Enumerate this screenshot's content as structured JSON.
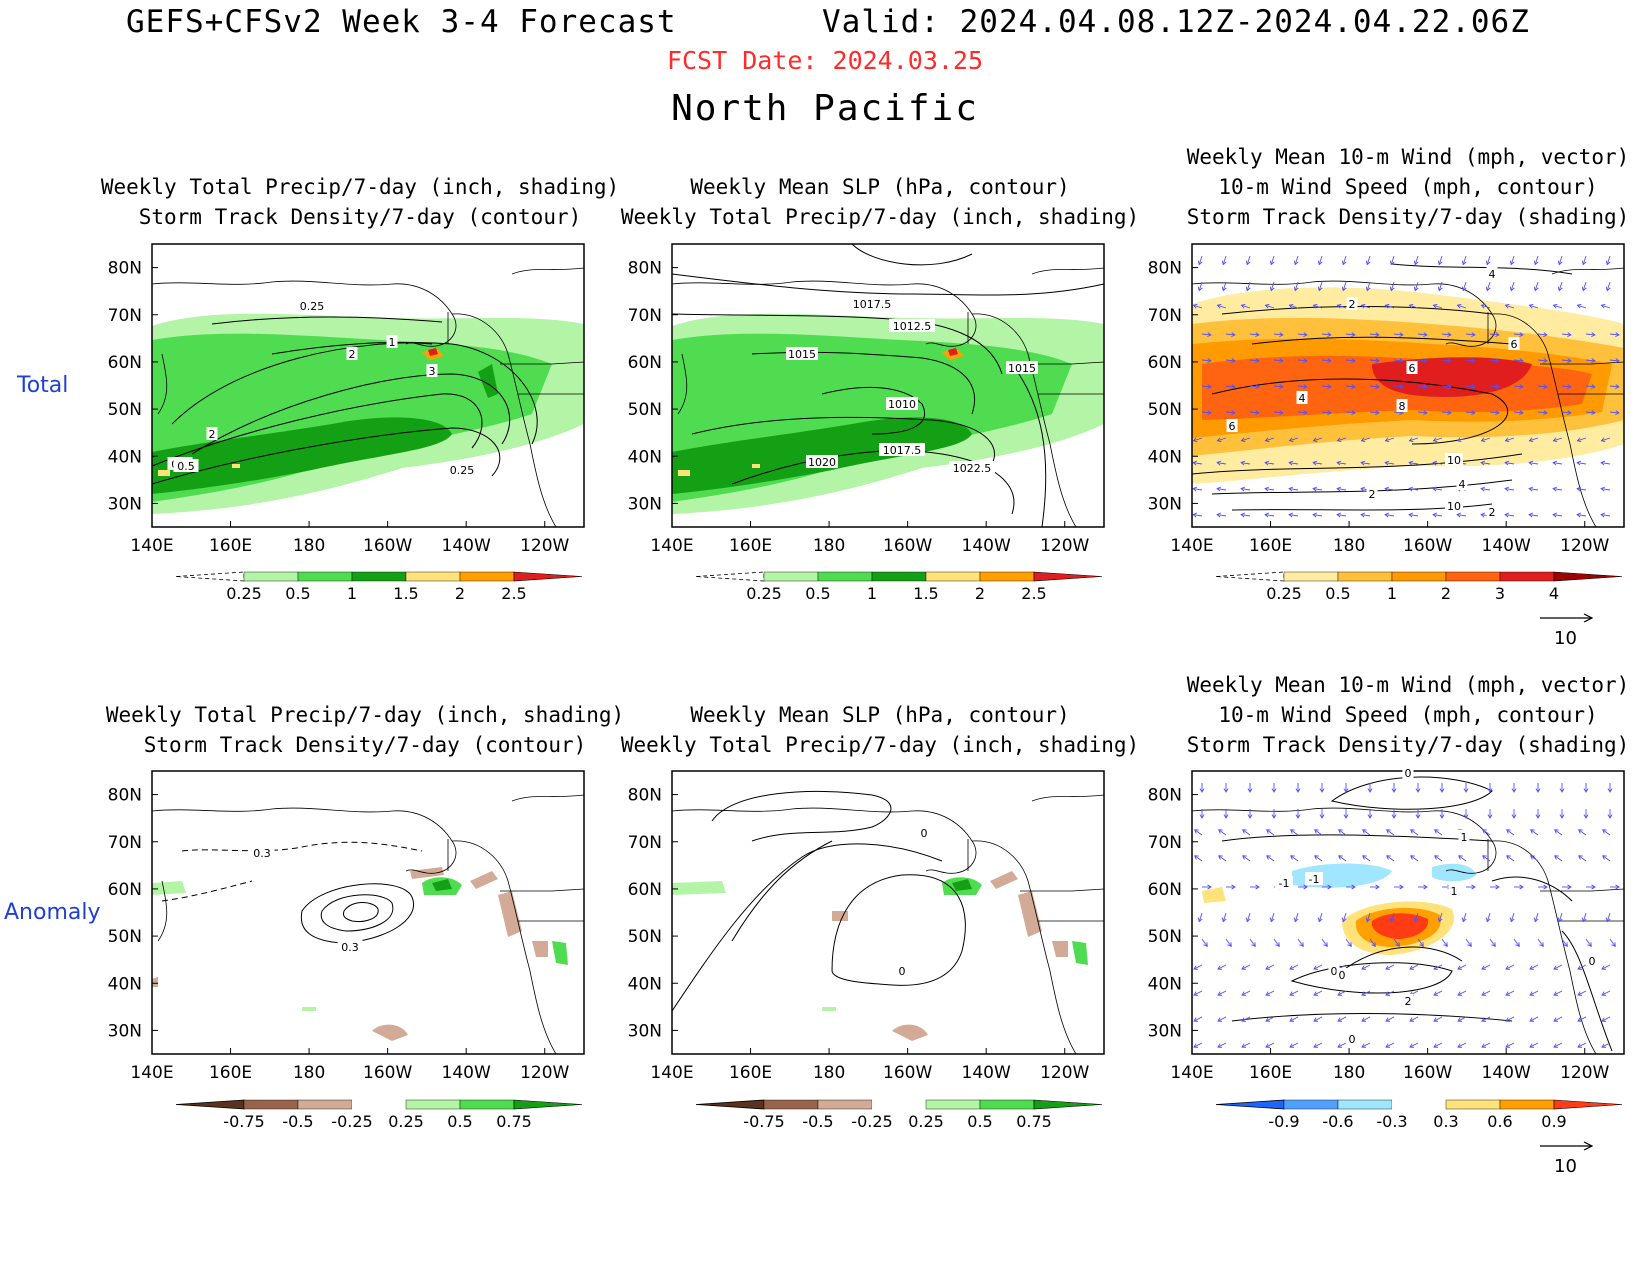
{
  "header": {
    "title": "GEFS+CFSv2 Week 3-4 Forecast",
    "valid": "Valid: 2024.04.08.12Z-2024.04.22.06Z",
    "fcst_date": "FCST Date: 2024.03.25",
    "region": "North Pacific"
  },
  "rows": {
    "total": "Total",
    "anomaly": "Anomaly"
  },
  "axes": {
    "lat_ticks": [
      "80N",
      "70N",
      "60N",
      "50N",
      "40N",
      "30N"
    ],
    "lon_ticks": [
      "140E",
      "160E",
      "180",
      "160W",
      "140W",
      "120W"
    ],
    "lat_range": [
      25,
      85
    ],
    "lon_range": [
      140,
      250
    ]
  },
  "panels": {
    "p1": {
      "titles": [
        "Weekly Total Precip/7-day (inch, shading)",
        "Storm Track Density/7-day (contour)"
      ]
    },
    "p2": {
      "titles": [
        "Weekly Mean SLP (hPa, contour)",
        "Weekly Total Precip/7-day (inch, shading)"
      ]
    },
    "p3": {
      "titles": [
        "Weekly Mean 10-m Wind (mph, vector)",
        "10-m Wind Speed (mph, contour)",
        "Storm Track Density/7-day (shading)"
      ]
    },
    "p4": {
      "titles": [
        "Weekly Total Precip/7-day (inch, shading)",
        "Storm Track Density/7-day (contour)"
      ]
    },
    "p5": {
      "titles": [
        "Weekly Mean SLP (hPa, contour)",
        "Weekly Total Precip/7-day (inch, shading)"
      ]
    },
    "p6": {
      "titles": [
        "Weekly Mean 10-m Wind (mph, vector)",
        "10-m Wind Speed (mph, contour)",
        "Storm Track Density/7-day (shading)"
      ]
    }
  },
  "contour_labels": {
    "p1": [
      "0.25",
      "0.5",
      "1",
      "2",
      "3",
      "2",
      "0.5",
      "0.25"
    ],
    "p2": [
      "1017.5",
      "1015",
      "1012.5",
      "1015",
      "1010",
      "1017.5",
      "1020",
      "1022.5"
    ],
    "p3": [
      "4",
      "2",
      "6",
      "6",
      "4",
      "8",
      "6",
      "10",
      "4",
      "2",
      "10",
      "2"
    ],
    "p4": [
      "0.3",
      "0.3"
    ],
    "p5": [
      "0",
      "0"
    ],
    "p6": [
      "0",
      "1",
      "-1",
      "-1",
      "0",
      "1",
      "2",
      "0",
      "0",
      "0"
    ]
  },
  "colorbars": {
    "precip_total": {
      "labels": [
        "0.25",
        "0.5",
        "1",
        "1.5",
        "2",
        "2.5"
      ],
      "colors": [
        "#ffffff",
        "#b4f4a6",
        "#50dc50",
        "#14a014",
        "#ffe27a",
        "#ffa000",
        "#e11e1e"
      ]
    },
    "storm_total": {
      "labels": [
        "0.25",
        "0.5",
        "1",
        "2",
        "3",
        "4"
      ],
      "colors": [
        "#ffffff",
        "#ffeca0",
        "#ffc03c",
        "#ff9a00",
        "#ff6410",
        "#e11e1e",
        "#a00000"
      ]
    },
    "precip_anom": {
      "labels": [
        "-0.75",
        "-0.5",
        "-0.25",
        "0.25",
        "0.5",
        "0.75"
      ],
      "colors": [
        "#5a321e",
        "#96644b",
        "#d2aa96",
        "#ffffff",
        "#b4f4a6",
        "#50dc50",
        "#14a014"
      ]
    },
    "storm_anom": {
      "labels": [
        "-0.9",
        "-0.6",
        "-0.3",
        "0.3",
        "0.6",
        "0.9"
      ],
      "colors": [
        "#1e64ff",
        "#50a0ff",
        "#a0e6ff",
        "#ffffff",
        "#ffe27a",
        "#ffa000",
        "#ff3c14"
      ]
    }
  },
  "vector_reference": "10"
}
